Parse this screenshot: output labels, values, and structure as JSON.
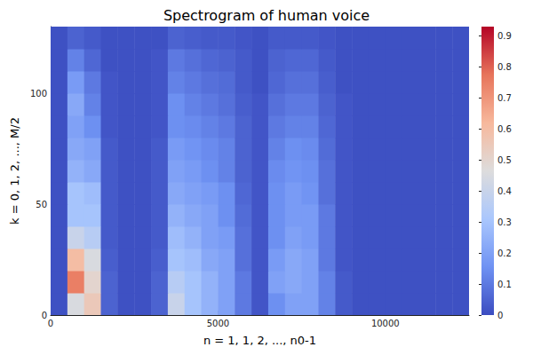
{
  "chart_data": {
    "type": "heatmap",
    "title": "Spectrogram of human voice",
    "x_label": "n = 1, 1, 2, ..., n0-1",
    "y_label": "k = 0, 1, 2, ..., M/2",
    "xlim": [
      0,
      12500
    ],
    "xticks": [
      0,
      5000,
      10000
    ],
    "ylim": [
      0,
      130
    ],
    "yticks": [
      0,
      50,
      100
    ],
    "grid": false,
    "x_bins": [
      0,
      500,
      1000,
      1500,
      2000,
      2500,
      3000,
      3500,
      4000,
      4500,
      5000,
      5500,
      6000,
      6500,
      7000,
      7500,
      8000,
      8500,
      9000,
      9500,
      10000,
      10500,
      11000,
      11500,
      12000,
      12500
    ],
    "y_bins": [
      0,
      10,
      20,
      30,
      40,
      50,
      60,
      70,
      80,
      90,
      100,
      110,
      120,
      130
    ],
    "cells": [
      [
        0.01,
        0.45,
        0.55,
        0.05,
        0.01,
        0.01,
        0.05,
        0.4,
        0.3,
        0.25,
        0.2,
        0.1,
        0.02,
        0.15,
        0.2,
        0.2,
        0.12,
        0.03,
        0.01,
        0.01,
        0.01,
        0.01,
        0.01,
        0.01,
        0.01
      ],
      [
        0.01,
        0.75,
        0.5,
        0.05,
        0.01,
        0.01,
        0.05,
        0.35,
        0.3,
        0.25,
        0.2,
        0.1,
        0.02,
        0.2,
        0.22,
        0.2,
        0.12,
        0.03,
        0.01,
        0.01,
        0.01,
        0.01,
        0.01,
        0.01,
        0.01
      ],
      [
        0.01,
        0.6,
        0.45,
        0.04,
        0.01,
        0.01,
        0.04,
        0.3,
        0.28,
        0.22,
        0.2,
        0.08,
        0.02,
        0.18,
        0.22,
        0.2,
        0.1,
        0.02,
        0.01,
        0.01,
        0.01,
        0.01,
        0.01,
        0.01,
        0.01
      ],
      [
        0.01,
        0.4,
        0.35,
        0.03,
        0.01,
        0.01,
        0.03,
        0.28,
        0.25,
        0.2,
        0.18,
        0.08,
        0.02,
        0.15,
        0.2,
        0.18,
        0.1,
        0.02,
        0.01,
        0.01,
        0.01,
        0.01,
        0.01,
        0.01,
        0.01
      ],
      [
        0.01,
        0.3,
        0.3,
        0.03,
        0.01,
        0.01,
        0.03,
        0.25,
        0.22,
        0.2,
        0.15,
        0.07,
        0.02,
        0.15,
        0.18,
        0.18,
        0.1,
        0.02,
        0.01,
        0.01,
        0.01,
        0.01,
        0.01,
        0.01,
        0.01
      ],
      [
        0.01,
        0.3,
        0.28,
        0.03,
        0.01,
        0.01,
        0.03,
        0.22,
        0.2,
        0.18,
        0.15,
        0.06,
        0.02,
        0.15,
        0.18,
        0.16,
        0.08,
        0.02,
        0.01,
        0.01,
        0.01,
        0.01,
        0.01,
        0.01,
        0.01
      ],
      [
        0.01,
        0.25,
        0.22,
        0.03,
        0.01,
        0.01,
        0.03,
        0.2,
        0.18,
        0.15,
        0.12,
        0.05,
        0.02,
        0.14,
        0.16,
        0.15,
        0.08,
        0.02,
        0.01,
        0.01,
        0.01,
        0.01,
        0.01,
        0.01,
        0.01
      ],
      [
        0.01,
        0.22,
        0.2,
        0.03,
        0.01,
        0.01,
        0.03,
        0.18,
        0.16,
        0.14,
        0.12,
        0.05,
        0.02,
        0.12,
        0.15,
        0.14,
        0.07,
        0.02,
        0.01,
        0.01,
        0.01,
        0.01,
        0.01,
        0.01,
        0.01
      ],
      [
        0.01,
        0.2,
        0.15,
        0.02,
        0.01,
        0.01,
        0.02,
        0.15,
        0.14,
        0.12,
        0.1,
        0.05,
        0.02,
        0.1,
        0.12,
        0.12,
        0.06,
        0.02,
        0.01,
        0.01,
        0.01,
        0.01,
        0.01,
        0.01,
        0.01
      ],
      [
        0.01,
        0.22,
        0.12,
        0.02,
        0.01,
        0.01,
        0.02,
        0.15,
        0.12,
        0.1,
        0.08,
        0.04,
        0.02,
        0.08,
        0.1,
        0.1,
        0.05,
        0.02,
        0.01,
        0.01,
        0.01,
        0.01,
        0.01,
        0.01,
        0.01
      ],
      [
        0.01,
        0.18,
        0.1,
        0.02,
        0.01,
        0.01,
        0.02,
        0.12,
        0.1,
        0.08,
        0.07,
        0.03,
        0.01,
        0.06,
        0.08,
        0.08,
        0.04,
        0.01,
        0.01,
        0.01,
        0.01,
        0.01,
        0.01,
        0.01,
        0.01
      ],
      [
        0.01,
        0.12,
        0.06,
        0.01,
        0.01,
        0.01,
        0.02,
        0.1,
        0.08,
        0.06,
        0.05,
        0.03,
        0.01,
        0.05,
        0.06,
        0.06,
        0.03,
        0.01,
        0.01,
        0.01,
        0.01,
        0.01,
        0.01,
        0.01,
        0.01
      ],
      [
        0.01,
        0.05,
        0.03,
        0.01,
        0.01,
        0.01,
        0.01,
        0.05,
        0.04,
        0.03,
        0.03,
        0.02,
        0.01,
        0.03,
        0.03,
        0.03,
        0.02,
        0.01,
        0.01,
        0.01,
        0.01,
        0.01,
        0.01,
        0.01,
        0.01
      ]
    ],
    "colorbar": {
      "range": [
        0,
        0.93
      ],
      "ticks": [
        0,
        0.1,
        0.2,
        0.3,
        0.4,
        0.5,
        0.6,
        0.7,
        0.8,
        0.9
      ]
    }
  }
}
